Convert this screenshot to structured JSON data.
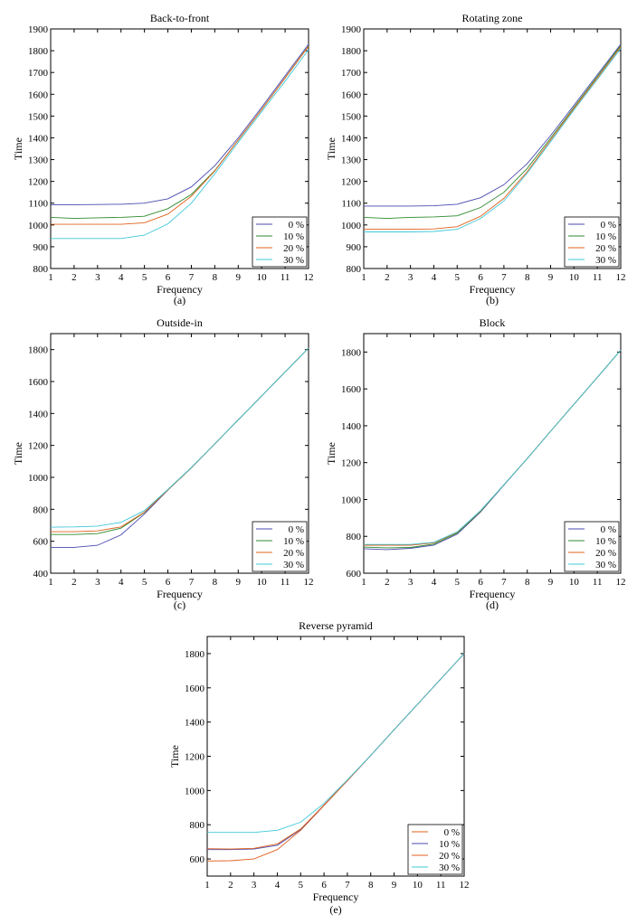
{
  "chart_data": [
    {
      "type": "line",
      "title": "Back-to-front",
      "xlabel": "Frequency",
      "ylabel": "Time",
      "caption": "(a)",
      "x": [
        1,
        2,
        3,
        4,
        5,
        6,
        7,
        8,
        9,
        10,
        11,
        12
      ],
      "xlim": [
        1,
        12
      ],
      "ylim": [
        800,
        1900
      ],
      "yticks": [
        800,
        900,
        1000,
        1100,
        1200,
        1300,
        1400,
        1500,
        1600,
        1700,
        1800,
        1900
      ],
      "grid": false,
      "legend_position": "bottom-right",
      "series": [
        {
          "name": "0 %",
          "color": "#4a4ab0",
          "values": [
            1093,
            1093,
            1094,
            1095,
            1100,
            1120,
            1175,
            1272,
            1400,
            1540,
            1685,
            1830
          ]
        },
        {
          "name": "10 %",
          "color": "#2e8b2e",
          "values": [
            1035,
            1030,
            1033,
            1035,
            1040,
            1075,
            1140,
            1250,
            1390,
            1530,
            1675,
            1822
          ]
        },
        {
          "name": "20 %",
          "color": "#e0601c",
          "values": [
            1003,
            1003,
            1003,
            1003,
            1010,
            1050,
            1132,
            1248,
            1390,
            1530,
            1675,
            1820
          ]
        },
        {
          "name": "30 %",
          "color": "#3fc8d8",
          "values": [
            938,
            938,
            938,
            938,
            953,
            1005,
            1100,
            1235,
            1380,
            1520,
            1660,
            1805
          ]
        }
      ]
    },
    {
      "type": "line",
      "title": "Rotating zone",
      "xlabel": "Frequency",
      "ylabel": "Time",
      "caption": "(b)",
      "x": [
        1,
        2,
        3,
        4,
        5,
        6,
        7,
        8,
        9,
        10,
        11,
        12
      ],
      "xlim": [
        1,
        12
      ],
      "ylim": [
        800,
        1900
      ],
      "yticks": [
        800,
        900,
        1000,
        1100,
        1200,
        1300,
        1400,
        1500,
        1600,
        1700,
        1800,
        1900
      ],
      "grid": false,
      "legend_position": "bottom-right",
      "series": [
        {
          "name": "0 %",
          "color": "#4a4ab0",
          "values": [
            1087,
            1087,
            1087,
            1088,
            1095,
            1125,
            1185,
            1282,
            1410,
            1550,
            1690,
            1830
          ]
        },
        {
          "name": "10 %",
          "color": "#2e8b2e",
          "values": [
            1035,
            1030,
            1035,
            1037,
            1042,
            1080,
            1150,
            1260,
            1398,
            1540,
            1682,
            1824
          ]
        },
        {
          "name": "20 %",
          "color": "#e0601c",
          "values": [
            980,
            980,
            980,
            982,
            992,
            1040,
            1122,
            1245,
            1390,
            1535,
            1675,
            1818
          ]
        },
        {
          "name": "30 %",
          "color": "#3fc8d8",
          "values": [
            968,
            968,
            968,
            970,
            980,
            1030,
            1110,
            1238,
            1382,
            1528,
            1668,
            1810
          ]
        }
      ]
    },
    {
      "type": "line",
      "title": "Outside-in",
      "xlabel": "Frequency",
      "ylabel": "Time",
      "caption": "(c)",
      "x": [
        1,
        2,
        3,
        4,
        5,
        6,
        7,
        8,
        9,
        10,
        11,
        12
      ],
      "xlim": [
        1,
        12
      ],
      "ylim": [
        400,
        1900
      ],
      "yticks": [
        400,
        600,
        800,
        1000,
        1200,
        1400,
        1600,
        1800
      ],
      "grid": false,
      "legend_position": "bottom-right",
      "series": [
        {
          "name": "0 %",
          "color": "#4a4ab0",
          "values": [
            562,
            562,
            575,
            640,
            770,
            920,
            1060,
            1210,
            1360,
            1510,
            1660,
            1810
          ]
        },
        {
          "name": "10 %",
          "color": "#2e8b2e",
          "values": [
            642,
            642,
            648,
            682,
            780,
            922,
            1060,
            1210,
            1360,
            1510,
            1660,
            1810
          ]
        },
        {
          "name": "20 %",
          "color": "#e0601c",
          "values": [
            660,
            660,
            665,
            690,
            782,
            922,
            1060,
            1210,
            1360,
            1510,
            1660,
            1810
          ]
        },
        {
          "name": "30 %",
          "color": "#3fc8d8",
          "values": [
            688,
            690,
            695,
            718,
            792,
            925,
            1062,
            1210,
            1360,
            1510,
            1660,
            1810
          ]
        }
      ]
    },
    {
      "type": "line",
      "title": "Block",
      "xlabel": "Frequency",
      "ylabel": "Time",
      "caption": "(d)",
      "x": [
        1,
        2,
        3,
        4,
        5,
        6,
        7,
        8,
        9,
        10,
        11,
        12
      ],
      "xlim": [
        1,
        12
      ],
      "ylim": [
        600,
        1900
      ],
      "yticks": [
        600,
        800,
        1000,
        1200,
        1400,
        1600,
        1800
      ],
      "grid": false,
      "legend_position": "bottom-right",
      "series": [
        {
          "name": "0 %",
          "color": "#4a4ab0",
          "values": [
            733,
            728,
            735,
            752,
            812,
            932,
            1078,
            1222,
            1370,
            1517,
            1663,
            1810
          ]
        },
        {
          "name": "10 %",
          "color": "#2e8b2e",
          "values": [
            742,
            738,
            740,
            758,
            818,
            935,
            1080,
            1222,
            1370,
            1517,
            1663,
            1810
          ]
        },
        {
          "name": "20 %",
          "color": "#e0601c",
          "values": [
            752,
            752,
            752,
            765,
            822,
            938,
            1080,
            1222,
            1370,
            1517,
            1663,
            1810
          ]
        },
        {
          "name": "30 %",
          "color": "#3fc8d8",
          "values": [
            756,
            756,
            756,
            768,
            824,
            940,
            1080,
            1222,
            1370,
            1517,
            1663,
            1810
          ]
        }
      ]
    },
    {
      "type": "line",
      "title": "Reverse pyramid",
      "xlabel": "Frequency",
      "ylabel": "Time",
      "caption": "(e)",
      "x": [
        1,
        2,
        3,
        4,
        5,
        6,
        7,
        8,
        9,
        10,
        11,
        12
      ],
      "xlim": [
        1,
        12
      ],
      "ylim": [
        500,
        1900
      ],
      "yticks": [
        600,
        800,
        1000,
        1200,
        1400,
        1600,
        1800
      ],
      "grid": false,
      "legend_position": "bottom-right",
      "series": [
        {
          "name": "0 %",
          "color": "#e0601c",
          "values": [
            588,
            590,
            600,
            655,
            768,
            912,
            1058,
            1205,
            1355,
            1503,
            1652,
            1800
          ]
        },
        {
          "name": "10 %",
          "color": "#4a4ab0",
          "values": [
            655,
            655,
            658,
            680,
            772,
            914,
            1058,
            1205,
            1355,
            1503,
            1652,
            1800
          ]
        },
        {
          "name": "20 %",
          "color": "#e0601c",
          "values": [
            660,
            658,
            662,
            688,
            775,
            915,
            1058,
            1205,
            1355,
            1503,
            1652,
            1800
          ]
        },
        {
          "name": "30 %",
          "color": "#3fc8d8",
          "values": [
            755,
            755,
            755,
            768,
            815,
            925,
            1062,
            1205,
            1355,
            1503,
            1652,
            1800
          ]
        }
      ]
    }
  ]
}
